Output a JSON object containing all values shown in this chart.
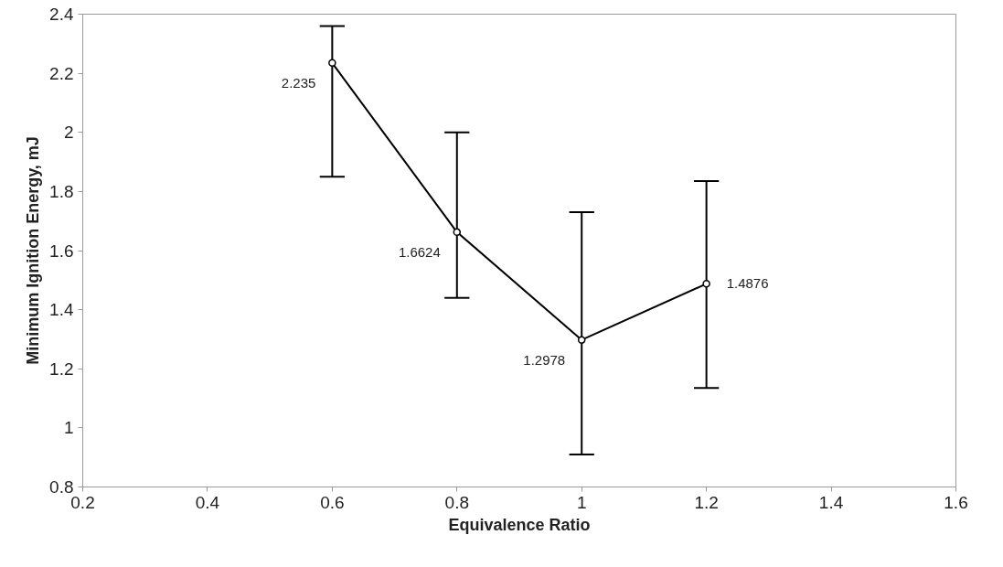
{
  "chart_data": {
    "type": "line",
    "xlabel": "Equivalence Ratio",
    "ylabel": "Minimum Ignition Energy, mJ",
    "x": [
      0.6,
      0.8,
      1.0,
      1.2
    ],
    "values": [
      2.235,
      1.6624,
      1.2978,
      1.4876
    ],
    "errors": [
      [
        1.85,
        2.36
      ],
      [
        1.44,
        2.0
      ],
      [
        0.91,
        1.73
      ],
      [
        1.135,
        1.835
      ]
    ],
    "color": "#000000",
    "marker": "circle",
    "line_style": "solid",
    "data_labels": true,
    "xlim": [
      0.2,
      1.6
    ],
    "xticks": [
      0.2,
      0.4,
      0.6,
      0.8,
      1,
      1.2,
      1.4,
      1.6
    ],
    "ylim": [
      0.8,
      2.4
    ],
    "yticks": [
      0.8,
      1,
      1.2,
      1.4,
      1.6,
      1.8,
      2,
      2.2,
      2.4
    ],
    "grid": false
  }
}
